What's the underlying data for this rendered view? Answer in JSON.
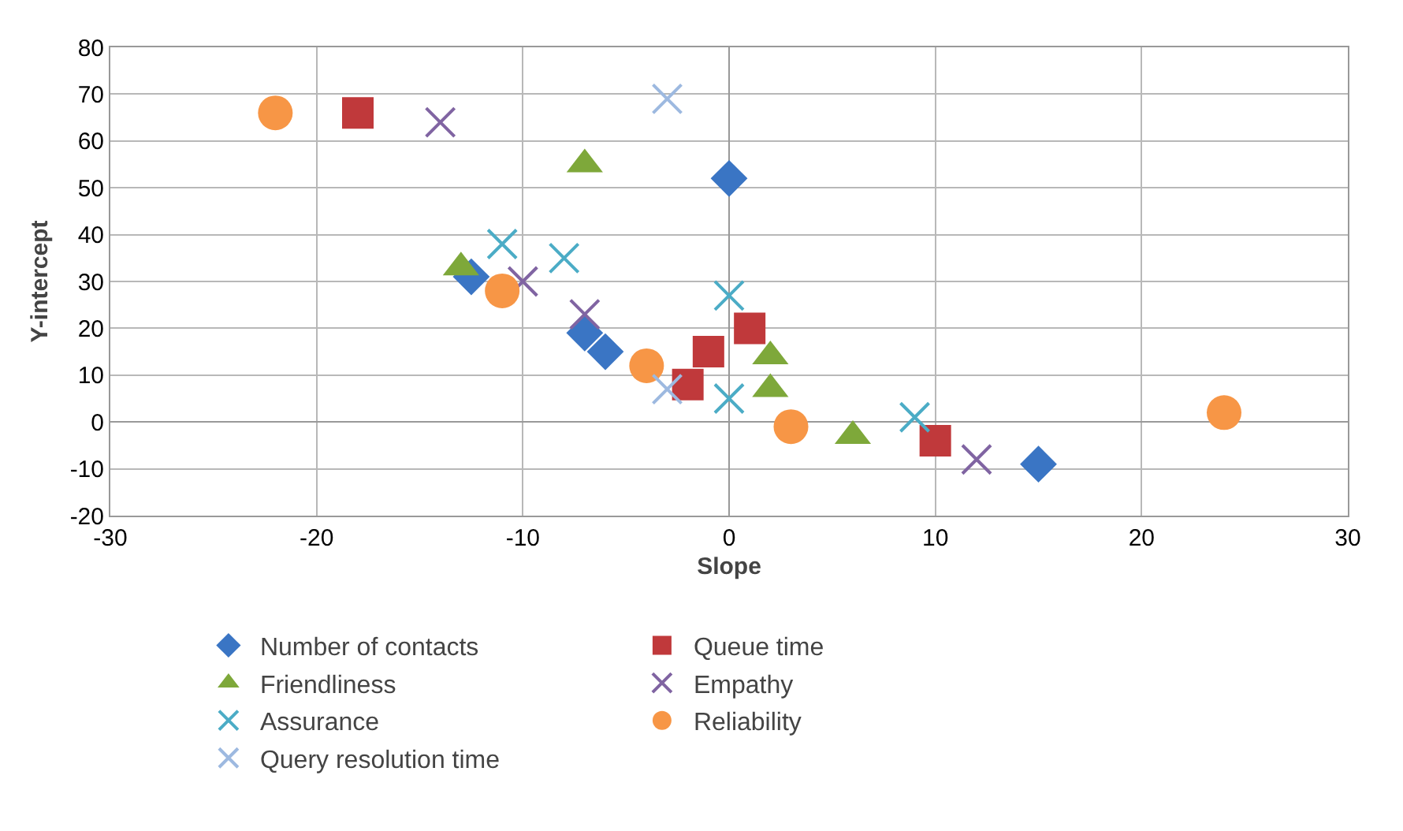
{
  "chart_data": {
    "type": "scatter",
    "xlabel": "Slope",
    "ylabel": "Y-intercept",
    "xlim": [
      -30,
      30
    ],
    "xticks": [
      -30,
      -20,
      -10,
      0,
      10,
      20,
      30
    ],
    "ylim": [
      -20,
      80
    ],
    "yticks": [
      -20,
      -10,
      0,
      10,
      20,
      30,
      40,
      50,
      60,
      70,
      80
    ],
    "grid": true,
    "legend": "bottom",
    "series": [
      {
        "name": "Number of contacts",
        "color": "#3a75c4",
        "marker": "diamond",
        "x": [
          0,
          -12.5,
          -7,
          -6,
          15
        ],
        "values": [
          52,
          31,
          19,
          15,
          -9
        ]
      },
      {
        "name": "Queue time",
        "color": "#c0393b",
        "marker": "square",
        "x": [
          -18,
          -1,
          -2,
          1,
          10
        ],
        "values": [
          66,
          15,
          8,
          20,
          -4
        ]
      },
      {
        "name": "Friendliness",
        "color": "#7ea83a",
        "marker": "triangle",
        "x": [
          -7,
          -13,
          2,
          2,
          6
        ],
        "values": [
          55,
          33,
          14,
          7,
          -3
        ]
      },
      {
        "name": "Empathy",
        "color": "#8064a2",
        "marker": "cross",
        "x": [
          -14,
          -10,
          -7,
          12
        ],
        "values": [
          64,
          30,
          23,
          -8
        ]
      },
      {
        "name": "Assurance",
        "color": "#4bacc6",
        "marker": "cross",
        "x": [
          -11,
          -8,
          0,
          0,
          9
        ],
        "values": [
          38,
          35,
          27,
          5,
          1
        ]
      },
      {
        "name": "Reliability",
        "color": "#f79646",
        "marker": "circle",
        "x": [
          -22,
          -11,
          -4,
          3,
          24
        ],
        "values": [
          66,
          28,
          12,
          -1,
          2
        ]
      },
      {
        "name": "Query resolution time",
        "color": "#9db9e0",
        "marker": "cross",
        "x": [
          -3,
          -3
        ],
        "values": [
          69,
          7
        ]
      }
    ]
  }
}
